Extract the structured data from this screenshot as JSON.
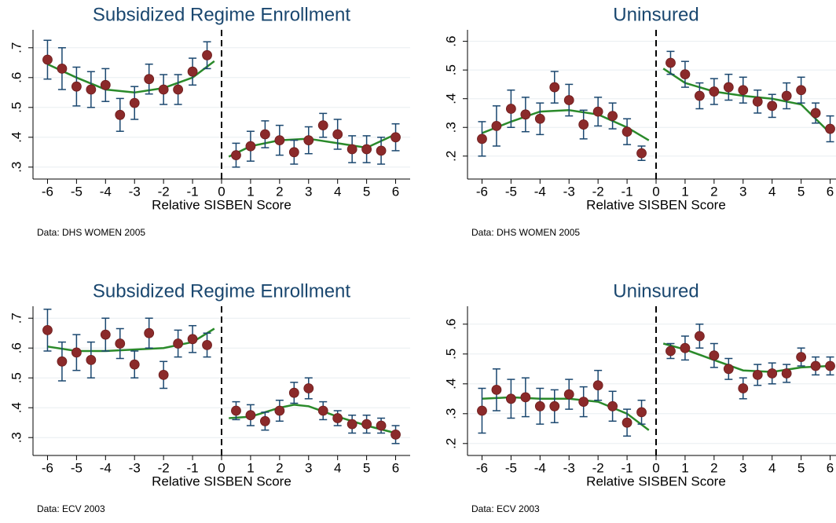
{
  "chart_data": [
    {
      "type": "scatter",
      "title": "Subsidized Regime Enrollment",
      "xlabel": "Relative SISBEN Score",
      "note": "Data: DHS WOMEN 2005",
      "x": [
        -6,
        -5.5,
        -5,
        -4.5,
        -4,
        -3.5,
        -3,
        -2.5,
        -2,
        -1.5,
        -1,
        -0.5,
        0.5,
        1,
        1.5,
        2,
        2.5,
        3,
        3.5,
        4,
        4.5,
        5,
        5.5,
        6
      ],
      "values": [
        0.66,
        0.63,
        0.57,
        0.56,
        0.575,
        0.475,
        0.515,
        0.595,
        0.56,
        0.56,
        0.62,
        0.675,
        0.34,
        0.37,
        0.41,
        0.39,
        0.35,
        0.39,
        0.44,
        0.41,
        0.36,
        0.36,
        0.355,
        0.4
      ],
      "errors": [
        0.065,
        0.07,
        0.065,
        0.06,
        0.055,
        0.055,
        0.055,
        0.05,
        0.05,
        0.05,
        0.045,
        0.045,
        0.04,
        0.05,
        0.045,
        0.05,
        0.04,
        0.045,
        0.04,
        0.05,
        0.045,
        0.045,
        0.045,
        0.045
      ],
      "fit_x": [
        -6,
        -5,
        -4,
        -3,
        -2,
        -1,
        -0.25,
        0,
        0.25,
        1,
        2,
        3,
        4,
        5,
        6
      ],
      "fit_values": [
        0.645,
        0.6,
        0.56,
        0.55,
        0.565,
        0.6,
        0.655,
        null,
        0.335,
        0.37,
        0.39,
        0.395,
        0.38,
        0.365,
        0.41
      ],
      "cutoff": 0,
      "xlim": [
        -6.5,
        6.5
      ],
      "ylim": [
        0.26,
        0.76
      ],
      "xticks": [
        -6,
        -5,
        -4,
        -3,
        -2,
        -1,
        0,
        1,
        2,
        3,
        4,
        5,
        6
      ],
      "yticks": [
        {
          "value": 0.3,
          "label": ".3"
        },
        {
          "value": 0.4,
          "label": ".4"
        },
        {
          "value": 0.5,
          "label": ".5"
        },
        {
          "value": 0.6,
          "label": ".6"
        },
        {
          "value": 0.7,
          "label": ".7"
        }
      ],
      "grid": true,
      "color": "#8b2a2a",
      "error_color": "#1a476f",
      "fit_color": "#2a8a2a"
    },
    {
      "type": "scatter",
      "title": "Uninsured",
      "xlabel": "Relative SISBEN Score",
      "note": "Data: DHS WOMEN 2005",
      "x": [
        -6,
        -5.5,
        -5,
        -4.5,
        -4,
        -3.5,
        -3,
        -2.5,
        -2,
        -1.5,
        -1,
        -0.5,
        0.5,
        1,
        1.5,
        2,
        2.5,
        3,
        3.5,
        4,
        4.5,
        5,
        5.5,
        6
      ],
      "values": [
        0.26,
        0.305,
        0.365,
        0.345,
        0.33,
        0.44,
        0.395,
        0.31,
        0.355,
        0.34,
        0.285,
        0.21,
        0.525,
        0.485,
        0.41,
        0.425,
        0.44,
        0.43,
        0.39,
        0.375,
        0.41,
        0.43,
        0.35,
        0.295
      ],
      "errors": [
        0.06,
        0.07,
        0.065,
        0.06,
        0.055,
        0.055,
        0.055,
        0.05,
        0.05,
        0.045,
        0.045,
        0.025,
        0.04,
        0.045,
        0.045,
        0.045,
        0.045,
        0.045,
        0.04,
        0.04,
        0.045,
        0.045,
        0.035,
        0.045
      ],
      "fit_x": [
        -6,
        -5,
        -4,
        -3,
        -2,
        -1,
        -0.25,
        0,
        0.25,
        1,
        2,
        3,
        4,
        5,
        6
      ],
      "fit_values": [
        0.28,
        0.32,
        0.355,
        0.36,
        0.345,
        0.3,
        0.255,
        null,
        0.505,
        0.455,
        0.425,
        0.41,
        0.4,
        0.38,
        0.28
      ],
      "cutoff": 0,
      "xlim": [
        -6.5,
        6.5
      ],
      "ylim": [
        0.12,
        0.64
      ],
      "xticks": [
        -6,
        -5,
        -4,
        -3,
        -2,
        -1,
        0,
        1,
        2,
        3,
        4,
        5,
        6
      ],
      "yticks": [
        {
          "value": 0.2,
          "label": ".2"
        },
        {
          "value": 0.3,
          "label": ".3"
        },
        {
          "value": 0.4,
          "label": ".4"
        },
        {
          "value": 0.5,
          "label": ".5"
        },
        {
          "value": 0.6,
          "label": ".6"
        }
      ],
      "grid": true,
      "color": "#8b2a2a",
      "error_color": "#1a476f",
      "fit_color": "#2a8a2a"
    },
    {
      "type": "scatter",
      "title": "Subsidized Regime Enrollment",
      "xlabel": "Relative SISBEN Score",
      "note": "Data: ECV 2003",
      "x": [
        -6,
        -5.5,
        -5,
        -4.5,
        -4,
        -3.5,
        -3,
        -2.5,
        -2,
        -1.5,
        -1,
        -0.5,
        0.5,
        1,
        1.5,
        2,
        2.5,
        3,
        3.5,
        4,
        4.5,
        5,
        5.5,
        6
      ],
      "values": [
        0.66,
        0.555,
        0.585,
        0.56,
        0.645,
        0.615,
        0.545,
        0.65,
        0.51,
        0.615,
        0.63,
        0.61,
        0.39,
        0.375,
        0.355,
        0.39,
        0.45,
        0.465,
        0.39,
        0.365,
        0.345,
        0.345,
        0.34,
        0.31
      ],
      "errors": [
        0.07,
        0.065,
        0.06,
        0.06,
        0.055,
        0.05,
        0.045,
        0.05,
        0.045,
        0.045,
        0.045,
        0.04,
        0.03,
        0.035,
        0.03,
        0.035,
        0.035,
        0.035,
        0.03,
        0.025,
        0.03,
        0.03,
        0.025,
        0.03
      ],
      "fit_x": [
        -6,
        -5,
        -4,
        -3,
        -2,
        -1,
        -0.25,
        0,
        0.25,
        1,
        2,
        2.5,
        3,
        4,
        5,
        6
      ],
      "fit_values": [
        0.605,
        0.59,
        0.59,
        0.595,
        0.6,
        0.62,
        0.665,
        null,
        0.365,
        0.37,
        0.4,
        0.41,
        0.405,
        0.37,
        0.34,
        0.315
      ],
      "cutoff": 0,
      "xlim": [
        -6.5,
        6.5
      ],
      "ylim": [
        0.24,
        0.74
      ],
      "xticks": [
        -6,
        -5,
        -4,
        -3,
        -2,
        -1,
        0,
        1,
        2,
        3,
        4,
        5,
        6
      ],
      "yticks": [
        {
          "value": 0.3,
          "label": ".3"
        },
        {
          "value": 0.4,
          "label": ".4"
        },
        {
          "value": 0.5,
          "label": ".5"
        },
        {
          "value": 0.6,
          "label": ".6"
        },
        {
          "value": 0.7,
          "label": ".7"
        }
      ],
      "grid": true,
      "color": "#8b2a2a",
      "error_color": "#1a476f",
      "fit_color": "#2a8a2a"
    },
    {
      "type": "scatter",
      "title": "Uninsured",
      "xlabel": "Relative SISBEN Score",
      "note": "Data: ECV 2003",
      "x": [
        -6,
        -5.5,
        -5,
        -4.5,
        -4,
        -3.5,
        -3,
        -2.5,
        -2,
        -1.5,
        -1,
        -0.5,
        0.5,
        1,
        1.5,
        2,
        2.5,
        3,
        3.5,
        4,
        4.5,
        5,
        5.5,
        6
      ],
      "values": [
        0.31,
        0.38,
        0.35,
        0.355,
        0.325,
        0.325,
        0.365,
        0.34,
        0.395,
        0.325,
        0.27,
        0.305,
        0.51,
        0.52,
        0.56,
        0.495,
        0.45,
        0.385,
        0.43,
        0.435,
        0.435,
        0.49,
        0.46,
        0.46
      ],
      "errors": [
        0.075,
        0.07,
        0.065,
        0.065,
        0.06,
        0.055,
        0.05,
        0.05,
        0.05,
        0.05,
        0.045,
        0.04,
        0.025,
        0.04,
        0.04,
        0.04,
        0.035,
        0.035,
        0.035,
        0.035,
        0.03,
        0.03,
        0.03,
        0.03
      ],
      "fit_x": [
        -6,
        -5,
        -4,
        -3,
        -2,
        -1,
        -0.25,
        0,
        0.25,
        1,
        2,
        3,
        4,
        5,
        6
      ],
      "fit_values": [
        0.35,
        0.355,
        0.35,
        0.35,
        0.34,
        0.3,
        0.245,
        null,
        0.535,
        0.515,
        0.48,
        0.445,
        0.44,
        0.455,
        0.46
      ],
      "cutoff": 0,
      "xlim": [
        -6.5,
        6.5
      ],
      "ylim": [
        0.16,
        0.66
      ],
      "xticks": [
        -6,
        -5,
        -4,
        -3,
        -2,
        -1,
        0,
        1,
        2,
        3,
        4,
        5,
        6
      ],
      "yticks": [
        {
          "value": 0.2,
          "label": ".2"
        },
        {
          "value": 0.3,
          "label": ".3"
        },
        {
          "value": 0.4,
          "label": ".4"
        },
        {
          "value": 0.5,
          "label": ".5"
        },
        {
          "value": 0.6,
          "label": ".6"
        }
      ],
      "grid": true,
      "color": "#8b2a2a",
      "error_color": "#1a476f",
      "fit_color": "#2a8a2a"
    }
  ]
}
